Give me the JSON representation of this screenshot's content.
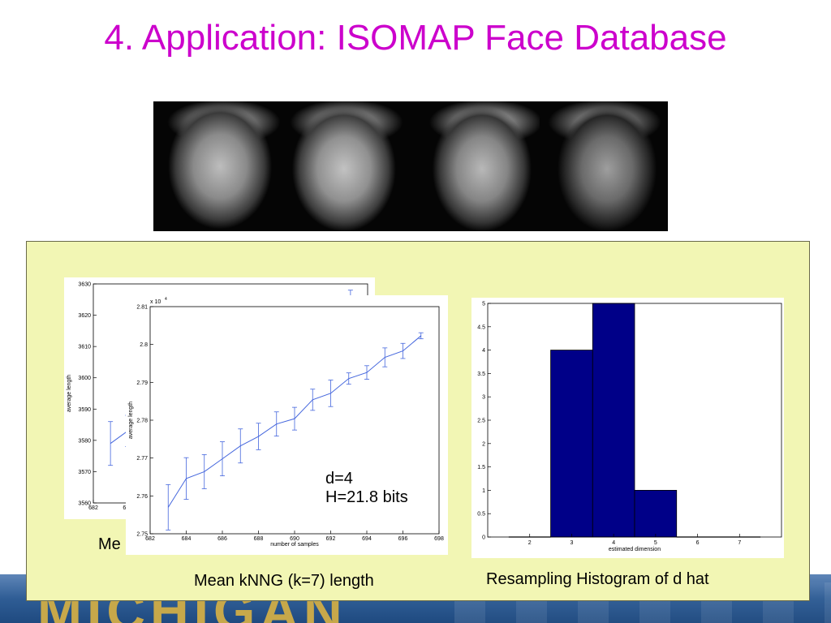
{
  "slide": {
    "title": "4. Application: ISOMAP Face Database",
    "footer_logo_text": "MICHIGAN"
  },
  "captions": {
    "back_partial": "Me",
    "front": "Mean kNNG (k=7) length",
    "right": "Resampling Histogram of d hat"
  },
  "annotation": {
    "line1": "d=4",
    "line2": "H=21.8 bits"
  },
  "colors": {
    "title": "#cc00cc",
    "panel": "#f2f6b4",
    "line": "#4466dd",
    "bar": "#000088"
  },
  "chart_data": [
    {
      "id": "back",
      "type": "line",
      "ylabel": "average length",
      "ylim": [
        3560,
        3630
      ],
      "yticks": [
        3560,
        3570,
        3580,
        3590,
        3600,
        3610,
        3620,
        3630
      ],
      "xlim": [
        682,
        698
      ],
      "xticks": [
        682,
        684
      ],
      "x": [
        683,
        684,
        685,
        697
      ],
      "y": [
        3579,
        3583,
        3585,
        3625
      ],
      "err": [
        7,
        5,
        5,
        3
      ]
    },
    {
      "id": "front",
      "type": "line",
      "xlabel": "number of samples",
      "ylabel": "average length",
      "exponent_label": "x 10",
      "exponent_power": "4",
      "xlim": [
        682,
        698
      ],
      "xticks": [
        682,
        684,
        686,
        688,
        690,
        692,
        694,
        696,
        698
      ],
      "ylim": [
        2.75,
        2.81
      ],
      "yticks": [
        "2.75",
        "2.76",
        "2.77",
        "2.78",
        "2.79",
        "2.8",
        "2.81"
      ],
      "x": [
        683,
        684,
        685,
        686,
        687,
        688,
        689,
        690,
        691,
        692,
        693,
        694,
        695,
        696,
        697
      ],
      "y": [
        2.757,
        2.7646,
        2.7664,
        2.7698,
        2.7732,
        2.7757,
        2.779,
        2.7804,
        2.7854,
        2.7871,
        2.791,
        2.7926,
        2.7966,
        2.7983,
        2.8023
      ],
      "err": [
        0.006,
        0.0055,
        0.0045,
        0.0045,
        0.0045,
        0.0035,
        0.0032,
        0.003,
        0.0028,
        0.0035,
        0.0015,
        0.0018,
        0.0025,
        0.002,
        0.0008
      ]
    },
    {
      "id": "hist",
      "type": "bar",
      "xlabel": "estimated dimension",
      "xlim": [
        1,
        8
      ],
      "xticks": [
        2,
        3,
        4,
        5,
        6,
        7
      ],
      "ylim": [
        0,
        5
      ],
      "yticks": [
        "0",
        "0.5",
        "1",
        "1.5",
        "2",
        "2.5",
        "3",
        "3.5",
        "4",
        "4.5",
        "5"
      ],
      "categories": [
        2,
        3,
        4,
        5,
        6,
        7
      ],
      "values": [
        0,
        4,
        5,
        1,
        0,
        0
      ]
    }
  ]
}
